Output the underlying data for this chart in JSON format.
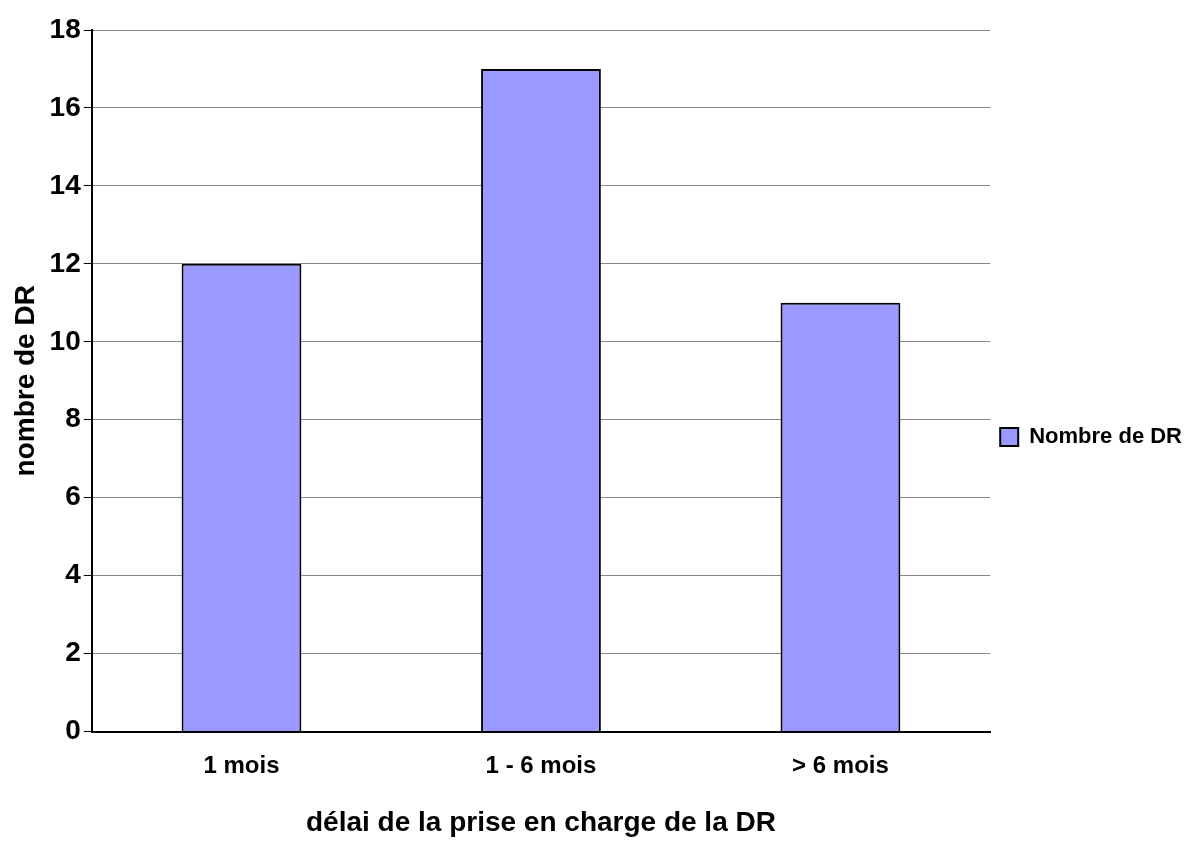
{
  "chart_data": {
    "type": "bar",
    "xlabel": "délai de la prise en charge de la DR",
    "ylabel": "nombre de DR",
    "categories": [
      "1 mois",
      "1 - 6 mois",
      "> 6 mois"
    ],
    "series": [
      {
        "name": "Nombre de DR",
        "color": "#9999ff",
        "values": [
          12,
          17,
          11
        ]
      }
    ],
    "ylim": [
      0,
      18
    ],
    "yticks": [
      0,
      2,
      4,
      6,
      8,
      10,
      12,
      14,
      16,
      18
    ],
    "grid": "y",
    "legend": "right"
  }
}
